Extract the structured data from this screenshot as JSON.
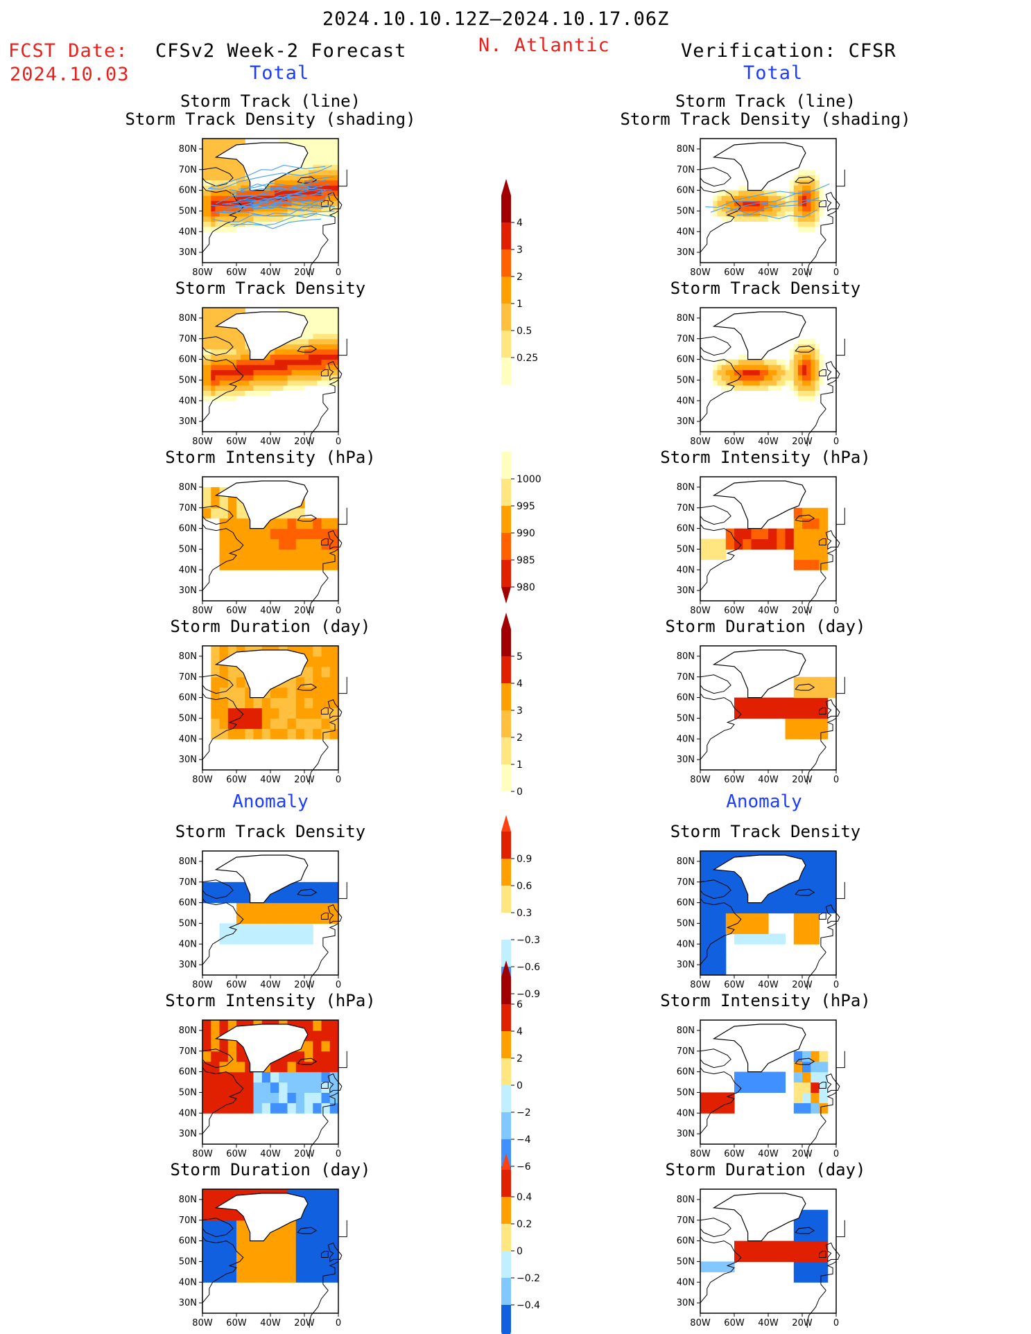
{
  "header": {
    "date_range": "2024.10.10.12Z–2024.10.17.06Z",
    "fcst_label": "FCST Date:",
    "fcst_date": "2024.10.03",
    "forecast_label": "CFSv2 Week-2 Forecast",
    "region": "N. Atlantic",
    "verification_label": "Verification: CFSR"
  },
  "sections": {
    "total": "Total",
    "anomaly": "Anomaly"
  },
  "panel_titles": {
    "track_line": "Storm Track (line)",
    "track_shading": "Storm Track Density (shading)",
    "density": "Storm Track Density",
    "intensity": "Storm Intensity (hPa)",
    "duration": "Storm Duration (day)"
  },
  "axes": {
    "lat_ticks": [
      "80N",
      "70N",
      "60N",
      "50N",
      "40N",
      "30N"
    ],
    "lon_ticks": [
      "80W",
      "60W",
      "40W",
      "20W",
      "0"
    ]
  },
  "colorbars": {
    "density_total": [
      "4",
      "3",
      "2",
      "1",
      "0.5",
      "0.25"
    ],
    "intensity_total": [
      "1000",
      "995",
      "990",
      "985",
      "980"
    ],
    "duration_total": [
      "5",
      "4",
      "3",
      "2",
      "1",
      "0"
    ],
    "density_anom": [
      "0.9",
      "0.6",
      "0.3",
      "−0.3",
      "−0.6",
      "−0.9"
    ],
    "intensity_anom": [
      "6",
      "4",
      "2",
      "0",
      "−2",
      "−4",
      "−6"
    ],
    "duration_anom": [
      "0.4",
      "0.2",
      "0",
      "−0.2",
      "−0.4"
    ]
  },
  "colors": {
    "seq": [
      "#ffffc0",
      "#ffe680",
      "#ffc040",
      "#ffa000",
      "#ff6000",
      "#e02000",
      "#a00000"
    ],
    "div_warm": [
      "#ffe680",
      "#ffa000",
      "#ff6000",
      "#e02000",
      "#a00000"
    ],
    "div_cool": [
      "#c0f0ff",
      "#80c8ff",
      "#4090ff",
      "#1060e0"
    ],
    "track_line": "#40a0ff"
  }
}
